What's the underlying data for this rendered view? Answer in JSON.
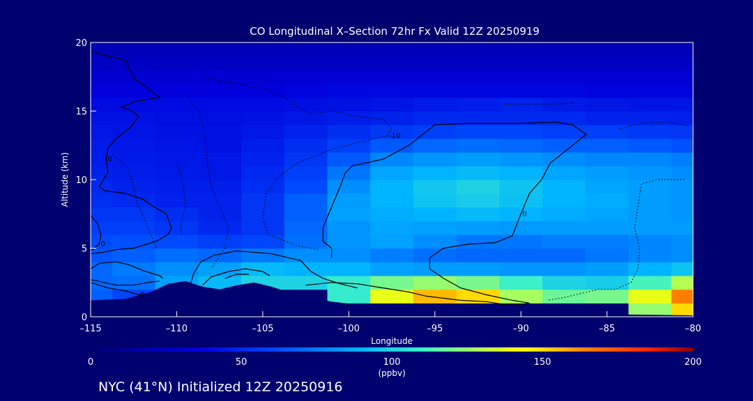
{
  "chart_data": {
    "type": "heatmap",
    "title": "CO Longitudinal X–Section 72hr  Fx Valid 12Z 20250919",
    "xlabel": "Longitude",
    "ylabel": "Altitude (km)",
    "xlim": [
      -115,
      -80
    ],
    "ylim": [
      0,
      20
    ],
    "x_ticks": [
      -115,
      -110,
      -105,
      -100,
      -95,
      -90,
      -85,
      -80
    ],
    "x_tick_labels": [
      "–115",
      "–110",
      "–105",
      "–100",
      "–95",
      "–90",
      "–85",
      "–80"
    ],
    "y_ticks": [
      0,
      5,
      10,
      15,
      20
    ],
    "y_tick_labels": [
      "0",
      "5",
      "10",
      "15",
      "20"
    ],
    "colorbar": {
      "label": "(ppbv)",
      "range": [
        0,
        200
      ],
      "ticks": [
        0,
        50,
        100,
        150,
        200
      ],
      "tick_labels": [
        "0",
        "50",
        "100",
        "150",
        "200"
      ]
    },
    "grid_lon": [
      -115,
      -112.5,
      -110,
      -107.5,
      -105,
      -102.5,
      -100,
      -97.5,
      -95,
      -92.5,
      -90,
      -87.5,
      -85,
      -82.5,
      -80
    ],
    "grid_alt": [
      0.5,
      1.5,
      2.5,
      3.5,
      4.5,
      5.5,
      6.5,
      7.5,
      8.5,
      9.5,
      10.5,
      11.5,
      12.5,
      13.5,
      14.5,
      15.5,
      16.5,
      17.5,
      18.5,
      19.5
    ],
    "co_ppbv": [
      [
        0,
        0,
        0,
        0,
        0,
        0,
        0,
        0,
        0,
        0,
        0,
        0,
        0,
        125,
        150
      ],
      [
        68,
        60,
        0,
        0,
        0,
        0,
        108,
        140,
        155,
        150,
        128,
        118,
        120,
        140,
        165
      ],
      [
        70,
        72,
        85,
        92,
        100,
        100,
        108,
        120,
        125,
        120,
        110,
        100,
        98,
        112,
        130
      ],
      [
        70,
        75,
        80,
        85,
        92,
        90,
        90,
        85,
        84,
        84,
        82,
        82,
        84,
        90,
        95
      ],
      [
        65,
        68,
        72,
        70,
        75,
        80,
        80,
        76,
        72,
        70,
        70,
        70,
        74,
        78,
        80
      ],
      [
        62,
        64,
        62,
        58,
        60,
        72,
        82,
        85,
        80,
        74,
        74,
        76,
        76,
        78,
        80
      ],
      [
        58,
        58,
        55,
        50,
        55,
        70,
        82,
        86,
        85,
        84,
        83,
        84,
        84,
        84,
        84
      ],
      [
        55,
        55,
        52,
        48,
        55,
        68,
        85,
        88,
        90,
        92,
        90,
        88,
        86,
        84,
        82
      ],
      [
        52,
        50,
        48,
        48,
        55,
        68,
        84,
        90,
        95,
        98,
        94,
        90,
        88,
        84,
        82
      ],
      [
        50,
        48,
        46,
        46,
        52,
        62,
        80,
        90,
        96,
        100,
        95,
        90,
        86,
        84,
        82
      ],
      [
        48,
        46,
        45,
        44,
        50,
        58,
        74,
        86,
        90,
        92,
        90,
        86,
        84,
        82,
        80
      ],
      [
        46,
        45,
        44,
        44,
        48,
        55,
        66,
        78,
        82,
        84,
        82,
        80,
        78,
        78,
        76
      ],
      [
        45,
        44,
        43,
        42,
        46,
        52,
        58,
        66,
        70,
        72,
        70,
        68,
        68,
        66,
        64
      ],
      [
        44,
        43,
        42,
        42,
        44,
        48,
        52,
        56,
        58,
        60,
        60,
        58,
        58,
        56,
        55
      ],
      [
        42,
        42,
        41,
        41,
        42,
        44,
        46,
        48,
        50,
        50,
        50,
        50,
        48,
        48,
        47
      ],
      [
        40,
        40,
        40,
        40,
        40,
        41,
        42,
        43,
        45,
        46,
        48,
        45,
        44,
        43,
        43
      ],
      [
        36,
        36,
        36,
        36,
        36,
        37,
        38,
        38,
        38,
        38,
        38,
        38,
        37,
        37,
        37
      ],
      [
        32,
        32,
        32,
        32,
        32,
        33,
        33,
        33,
        33,
        33,
        33,
        33,
        33,
        33,
        33
      ],
      [
        28,
        28,
        28,
        28,
        28,
        28,
        28,
        28,
        28,
        28,
        28,
        28,
        28,
        28,
        28
      ],
      [
        24,
        24,
        24,
        24,
        24,
        24,
        24,
        24,
        24,
        24,
        24,
        24,
        24,
        24,
        24
      ]
    ],
    "terrain_profile": [
      [
        -115,
        1.2
      ],
      [
        -113,
        1.3
      ],
      [
        -111.5,
        1.8
      ],
      [
        -110.5,
        2.4
      ],
      [
        -109.5,
        2.6
      ],
      [
        -108.5,
        2.2
      ],
      [
        -107.5,
        2.0
      ],
      [
        -106.5,
        2.3
      ],
      [
        -105.5,
        2.5
      ],
      [
        -104.5,
        2.2
      ],
      [
        -103,
        1.6
      ],
      [
        -101,
        1.1
      ],
      [
        -99,
        0.8
      ],
      [
        -97,
        0.6
      ],
      [
        -95,
        0.4
      ],
      [
        -92,
        0.3
      ],
      [
        -89,
        0.2
      ],
      [
        -86,
        0.2
      ],
      [
        -83,
        0.15
      ],
      [
        -80,
        0.1
      ]
    ],
    "contours": [
      {
        "style": "solid",
        "label": "0",
        "points": [
          [
            -115,
            19.4
          ],
          [
            -114,
            19
          ],
          [
            -113,
            18.7
          ],
          [
            -112.8,
            18.2
          ],
          [
            -112.4,
            17.3
          ],
          [
            -111.8,
            16.8
          ],
          [
            -111,
            16
          ],
          [
            -112.4,
            15.7
          ],
          [
            -113.2,
            15.3
          ],
          [
            -112.6,
            15
          ],
          [
            -112.2,
            14.6
          ],
          [
            -112.7,
            13.8
          ],
          [
            -113.5,
            13
          ],
          [
            -114,
            12.3
          ],
          [
            -114.1,
            11.5
          ],
          [
            -114,
            10.5
          ],
          [
            -114.5,
            9.5
          ],
          [
            -114.2,
            9.2
          ],
          [
            -113,
            9
          ],
          [
            -112,
            8.6
          ],
          [
            -111.3,
            8
          ],
          [
            -110.6,
            7.5
          ],
          [
            -110.3,
            6.5
          ],
          [
            -110.5,
            6
          ],
          [
            -111.2,
            5.5
          ],
          [
            -112.5,
            5
          ],
          [
            -113.5,
            4.9
          ],
          [
            -114.3,
            4.7
          ],
          [
            -115,
            4.6
          ]
        ]
      },
      {
        "style": "solid",
        "label": "0",
        "points": [
          [
            -115,
            7.4
          ],
          [
            -114.6,
            6.8
          ],
          [
            -114.4,
            6
          ],
          [
            -114.5,
            5.3
          ],
          [
            -114.8,
            5
          ],
          [
            -115,
            4.8
          ]
        ]
      },
      {
        "style": "solid",
        "label": "",
        "points": [
          [
            -115,
            3.5
          ],
          [
            -114.5,
            3.9
          ],
          [
            -113.5,
            4
          ],
          [
            -112.8,
            3.8
          ],
          [
            -111.8,
            3.3
          ],
          [
            -111,
            3
          ],
          [
            -110.8,
            2.8
          ]
        ]
      },
      {
        "style": "solid",
        "label": "0",
        "points": [
          [
            -115,
            2.5
          ],
          [
            -114,
            2.1
          ],
          [
            -113,
            1.9
          ],
          [
            -112.2,
            1.6
          ],
          [
            -111.5,
            1.7
          ],
          [
            -110.8,
            1.9
          ]
        ]
      },
      {
        "style": "solid",
        "label": "",
        "points": [
          [
            -115,
            2.7
          ],
          [
            -114.2,
            2.5
          ],
          [
            -113.5,
            2.3
          ],
          [
            -112.5,
            2.3
          ],
          [
            -111.7,
            2.5
          ],
          [
            -111,
            2.6
          ]
        ]
      },
      {
        "style": "solid",
        "label": "",
        "points": [
          [
            -109.2,
            2.4
          ],
          [
            -109,
            3.2
          ],
          [
            -108.6,
            4
          ],
          [
            -107.8,
            4.5
          ],
          [
            -106.5,
            4.8
          ],
          [
            -105.5,
            4.7
          ],
          [
            -104.5,
            4.6
          ],
          [
            -103.5,
            4.3
          ],
          [
            -102.8,
            4.1
          ],
          [
            -102.2,
            3.3
          ],
          [
            -101.5,
            2.8
          ],
          [
            -100.5,
            2.4
          ],
          [
            -99.5,
            2.1
          ]
        ]
      },
      {
        "style": "solid",
        "label": "",
        "points": [
          [
            -108.5,
            2.3
          ],
          [
            -108,
            2.9
          ],
          [
            -107,
            3.3
          ],
          [
            -106,
            3.5
          ],
          [
            -105,
            3.3
          ],
          [
            -104.6,
            3
          ]
        ]
      },
      {
        "style": "solid",
        "label": "",
        "points": [
          [
            -107.2,
            2.8
          ],
          [
            -106.5,
            3.1
          ],
          [
            -105.8,
            3.1
          ]
        ]
      },
      {
        "style": "solid",
        "label": "0",
        "points": [
          [
            -102.5,
            2.3
          ],
          [
            -101,
            2.5
          ],
          [
            -99.5,
            2.4
          ],
          [
            -98,
            2.1
          ],
          [
            -96.5,
            1.8
          ],
          [
            -95.5,
            1.5
          ],
          [
            -93.5,
            1.2
          ],
          [
            -92,
            1.1
          ],
          [
            -90.5,
            0.8
          ],
          [
            -89.5,
            1
          ],
          [
            -90.5,
            1.2
          ],
          [
            -92,
            1.6
          ],
          [
            -93.5,
            2.1
          ],
          [
            -94.5,
            2.8
          ],
          [
            -95.3,
            3.5
          ],
          [
            -95.3,
            4.3
          ],
          [
            -94.5,
            5
          ],
          [
            -93,
            5.3
          ],
          [
            -91.5,
            5.4
          ],
          [
            -90.5,
            5.9
          ],
          [
            -90,
            7.5
          ],
          [
            -89.5,
            9
          ],
          [
            -88.8,
            10
          ],
          [
            -88.3,
            11.2
          ],
          [
            -87.5,
            12
          ],
          [
            -86.2,
            13.3
          ],
          [
            -87,
            14
          ],
          [
            -88,
            14.2
          ],
          [
            -90,
            14.1
          ],
          [
            -93,
            14.1
          ],
          [
            -95,
            14
          ],
          [
            -96.5,
            12.5
          ],
          [
            -98,
            11.5
          ],
          [
            -99.8,
            11
          ],
          [
            -100.2,
            10.5
          ],
          [
            -100.5,
            9.5
          ],
          [
            -101,
            8
          ],
          [
            -101.5,
            6.5
          ],
          [
            -101.5,
            5.5
          ],
          [
            -101,
            5
          ],
          [
            -101,
            4.3
          ]
        ]
      },
      {
        "style": "dotted",
        "label": "",
        "points": [
          [
            -109.5,
            16.2
          ],
          [
            -108.7,
            15
          ],
          [
            -108.5,
            14
          ],
          [
            -108.3,
            12.5
          ],
          [
            -108.2,
            11
          ],
          [
            -108,
            9.5
          ],
          [
            -107.5,
            8
          ],
          [
            -107,
            6.5
          ],
          [
            -107.2,
            5
          ],
          [
            -108,
            3.5
          ]
        ]
      },
      {
        "style": "dotted",
        "label": "",
        "points": [
          [
            -113.7,
            11.8
          ],
          [
            -112.8,
            10.8
          ],
          [
            -112.5,
            9.5
          ],
          [
            -112.3,
            8.3
          ],
          [
            -112,
            7.5
          ],
          [
            -111.5,
            6
          ],
          [
            -111.2,
            5
          ]
        ]
      },
      {
        "style": "dotted",
        "label": "",
        "points": [
          [
            -109.9,
            11
          ],
          [
            -109.6,
            9.5
          ],
          [
            -109.5,
            8
          ],
          [
            -109.8,
            6.6
          ],
          [
            -109.7,
            6
          ]
        ]
      },
      {
        "style": "dotted",
        "label": "–10",
        "points": [
          [
            -108.5,
            17.5
          ],
          [
            -107,
            17.1
          ],
          [
            -105,
            16.7
          ],
          [
            -103.5,
            15.8
          ],
          [
            -102.3,
            14.8
          ],
          [
            -101,
            15
          ],
          [
            -99.5,
            14.6
          ],
          [
            -98,
            14.4
          ],
          [
            -97.5,
            13.7
          ],
          [
            -97.8,
            13.2
          ],
          [
            -99.5,
            12.7
          ],
          [
            -101,
            12.2
          ],
          [
            -103,
            11.2
          ],
          [
            -104,
            10.3
          ],
          [
            -104.8,
            9
          ],
          [
            -105,
            7.3
          ],
          [
            -104.7,
            6
          ],
          [
            -103,
            5.2
          ],
          [
            -101.8,
            4.9
          ]
        ]
      },
      {
        "style": "dotted",
        "label": "",
        "points": [
          [
            -80.5,
            10
          ],
          [
            -82,
            10
          ],
          [
            -83,
            9.7
          ],
          [
            -83.2,
            8
          ],
          [
            -83.4,
            6.5
          ],
          [
            -83.1,
            5
          ],
          [
            -83.2,
            3.5
          ],
          [
            -83.6,
            2.5
          ],
          [
            -84.5,
            2
          ],
          [
            -85.5,
            2
          ],
          [
            -86.5,
            1.7
          ],
          [
            -87.5,
            1.4
          ],
          [
            -88.5,
            1.2
          ]
        ]
      },
      {
        "style": "dotted",
        "label": "",
        "points": [
          [
            -84.3,
            13.7
          ],
          [
            -83,
            14.1
          ],
          [
            -81.5,
            14.2
          ],
          [
            -80.2,
            13.9
          ]
        ]
      },
      {
        "style": "dotted",
        "label": "",
        "points": [
          [
            -91,
            15.5
          ],
          [
            -89.5,
            15.5
          ],
          [
            -88,
            15.5
          ],
          [
            -86.8,
            15.6
          ]
        ]
      }
    ]
  },
  "footer": {
    "caption": "NYC (41°N) Initialized 12Z 20250916"
  }
}
